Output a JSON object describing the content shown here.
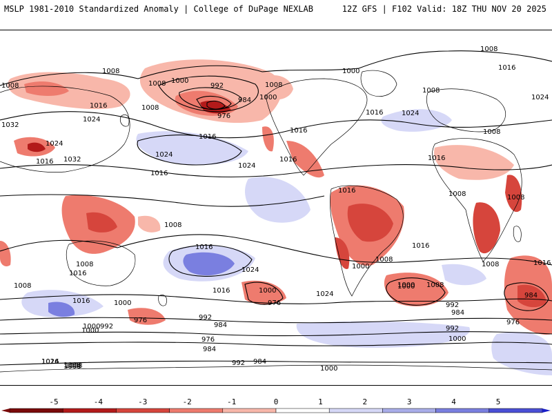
{
  "header": {
    "left_title": "MSLP 1981-2010 Standardized Anomaly | College of DuPage NEXLAB",
    "right_title": "12Z GFS | F102 Valid: 18Z THU NOV 20 2025"
  },
  "colors": {
    "strong_negative": "#7a0a0a",
    "negative_4": "#b31a1a",
    "negative_3": "#d6453c",
    "negative_2": "#ee7b6e",
    "negative_1": "#f8b7aa",
    "positive_1": "#d6d8f7",
    "positive_2": "#a9ade9",
    "positive_3": "#7a7fe0",
    "positive_4": "#4a4fd6",
    "positive_5": "#1a1fc8"
  },
  "colorbar": {
    "ticks": [
      "-5",
      "-4",
      "-3",
      "-2",
      "-1",
      "0",
      "1",
      "2",
      "3",
      "4",
      "5"
    ]
  },
  "isobar_labels": [
    "1008",
    "1000",
    "1008",
    "1016",
    "1024",
    "1032",
    "1016",
    "1032",
    "1024",
    "1008",
    "992",
    "984",
    "976",
    "1000",
    "1008",
    "1008",
    "1016",
    "1016",
    "1024",
    "1016",
    "1024",
    "1008",
    "1016",
    "1000",
    "1016",
    "1008",
    "1024",
    "1008",
    "1016",
    "1008",
    "1016",
    "1024",
    "1008",
    "1008",
    "1016",
    "1000",
    "1016",
    "1008",
    "1008",
    "1016",
    "1008",
    "1000",
    "1024",
    "1008",
    "1016",
    "1024",
    "1016",
    "1016",
    "1000",
    "976",
    "992",
    "984",
    "976",
    "984",
    "992",
    "1000",
    "1000",
    "1016",
    "1008",
    "1024",
    "1008",
    "1000",
    "992",
    "984",
    "976",
    "1000",
    "992",
    "976",
    "984",
    "1008",
    "1000",
    "992",
    "984",
    "1016",
    "1008",
    "1000"
  ]
}
